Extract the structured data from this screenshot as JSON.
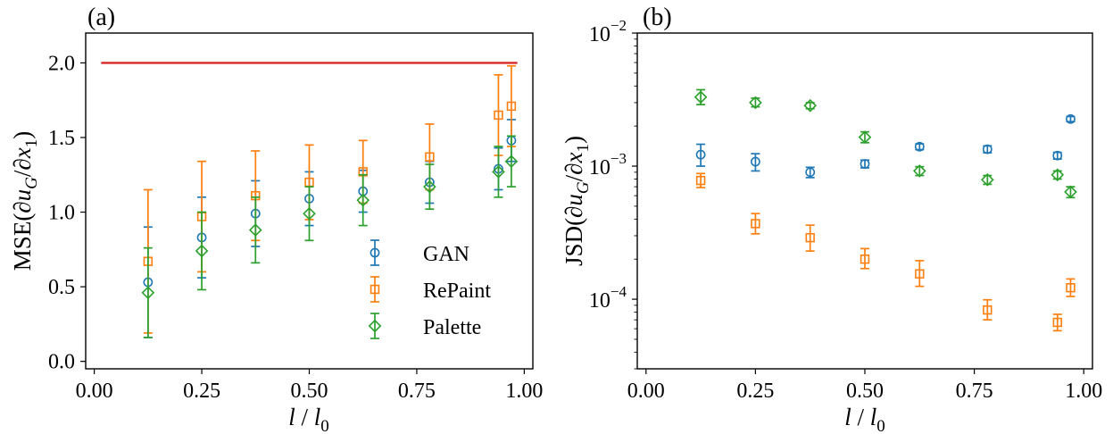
{
  "colors": {
    "GAN": "#1f77b4",
    "RePaint": "#ff7f0e",
    "Palette": "#2ca02c",
    "reference": "#d62728",
    "frame": "#000000"
  },
  "chart_data": [
    {
      "panel_label": "(a)",
      "type": "scatter",
      "error_bars": true,
      "xlabel_main": "l",
      "xlabel_sep": " / ",
      "xlabel_sub_base": "l",
      "xlabel_sub": "0",
      "ylabel_pre": "MSE(∂",
      "ylabel_u": "u",
      "ylabel_usub": "G",
      "ylabel_mid": "/∂",
      "ylabel_x": "x",
      "ylabel_xsub": "1",
      "ylabel_post": ")",
      "xlim": [
        -0.02,
        1.02
      ],
      "ylim": [
        -0.05,
        2.2
      ],
      "yscale": "linear",
      "xticks": [
        0.0,
        0.25,
        0.5,
        0.75,
        1.0
      ],
      "xtick_labels": [
        "0.00",
        "0.25",
        "0.50",
        "0.75",
        "1.00"
      ],
      "yticks": [
        0.0,
        0.5,
        1.0,
        1.5,
        2.0
      ],
      "ytick_labels": [
        "0.0",
        "0.5",
        "1.0",
        "1.5",
        "2.0"
      ],
      "grid": false,
      "legend": {
        "position": "lower-right",
        "entries": [
          "GAN",
          "RePaint",
          "Palette"
        ]
      },
      "reference_line": {
        "y": 2.0,
        "x_range": [
          0.016,
          0.984
        ]
      },
      "series": [
        {
          "name": "GAN",
          "marker": "circle",
          "x": [
            0.125,
            0.25,
            0.375,
            0.5,
            0.625,
            0.78,
            0.94,
            0.97
          ],
          "y": [
            0.53,
            0.83,
            0.99,
            1.09,
            1.14,
            1.2,
            1.29,
            1.48
          ],
          "err": [
            0.37,
            0.27,
            0.22,
            0.18,
            0.14,
            0.14,
            0.14,
            0.14
          ]
        },
        {
          "name": "RePaint",
          "marker": "square",
          "x": [
            0.125,
            0.25,
            0.375,
            0.5,
            0.625,
            0.78,
            0.94,
            0.97
          ],
          "y": [
            0.67,
            0.97,
            1.11,
            1.2,
            1.27,
            1.37,
            1.65,
            1.71
          ],
          "err": [
            0.48,
            0.37,
            0.3,
            0.25,
            0.21,
            0.22,
            0.27,
            0.27
          ]
        },
        {
          "name": "Palette",
          "marker": "diamond",
          "x": [
            0.125,
            0.25,
            0.375,
            0.5,
            0.625,
            0.78,
            0.94,
            0.97
          ],
          "y": [
            0.46,
            0.74,
            0.88,
            0.99,
            1.08,
            1.17,
            1.27,
            1.34
          ],
          "err": [
            0.3,
            0.26,
            0.22,
            0.18,
            0.17,
            0.15,
            0.17,
            0.17
          ]
        }
      ]
    },
    {
      "panel_label": "(b)",
      "type": "scatter",
      "error_bars": true,
      "xlabel_main": "l",
      "xlabel_sep": " / ",
      "xlabel_sub_base": "l",
      "xlabel_sub": "0",
      "ylabel_pre": "JSD(∂",
      "ylabel_u": "u",
      "ylabel_usub": "G",
      "ylabel_mid": "/∂",
      "ylabel_x": "x",
      "ylabel_xsub": "1",
      "ylabel_post": ")",
      "xlim": [
        -0.02,
        1.02
      ],
      "ylim": [
        3e-05,
        0.01
      ],
      "yscale": "log",
      "xticks": [
        0.0,
        0.25,
        0.5,
        0.75,
        1.0
      ],
      "xtick_labels": [
        "0.00",
        "0.25",
        "0.50",
        "0.75",
        "1.00"
      ],
      "yticks": [
        0.0001,
        0.001,
        0.01
      ],
      "ytick_base": "10",
      "ytick_exponents": [
        "−4",
        "−3",
        "−2"
      ],
      "grid": false,
      "series": [
        {
          "name": "GAN",
          "marker": "circle",
          "x": [
            0.125,
            0.25,
            0.375,
            0.5,
            0.625,
            0.78,
            0.94,
            0.97
          ],
          "y": [
            0.00122,
            0.00108,
            0.0009,
            0.00104,
            0.0014,
            0.00134,
            0.0012,
            0.00226
          ],
          "err_low": [
            0.00022,
            0.00016,
            8e-05,
            7e-05,
            7e-05,
            8e-05,
            7e-05,
            0.0001
          ],
          "err_high": [
            0.00024,
            0.00016,
            8e-05,
            7e-05,
            7e-05,
            8e-05,
            7e-05,
            0.0001
          ]
        },
        {
          "name": "RePaint",
          "marker": "square",
          "x": [
            0.125,
            0.25,
            0.375,
            0.5,
            0.625,
            0.78,
            0.94,
            0.97
          ],
          "y": [
            0.00078,
            0.00037,
            0.00029,
            0.0002,
            0.000155,
            8.3e-05,
            6.7e-05,
            0.000122
          ],
          "err_low": [
            9e-05,
            6e-05,
            6e-05,
            3e-05,
            3e-05,
            1.3e-05,
            9e-06,
            1.7e-05
          ],
          "err_high": [
            0.0001,
            7e-05,
            7e-05,
            4e-05,
            4e-05,
            1.6e-05,
            1e-05,
            2e-05
          ]
        },
        {
          "name": "Palette",
          "marker": "diamond",
          "x": [
            0.125,
            0.25,
            0.375,
            0.5,
            0.625,
            0.78,
            0.94,
            0.97
          ],
          "y": [
            0.0033,
            0.003,
            0.00285,
            0.00165,
            0.00092,
            0.00079,
            0.00086,
            0.00064
          ],
          "err_low": [
            0.0004,
            0.00021,
            0.00015,
            0.00015,
            7e-05,
            6e-05,
            6e-05,
            6e-05
          ],
          "err_high": [
            0.00045,
            0.00024,
            0.00015,
            0.00016,
            7e-05,
            6e-05,
            6e-05,
            6e-05
          ]
        }
      ]
    }
  ]
}
